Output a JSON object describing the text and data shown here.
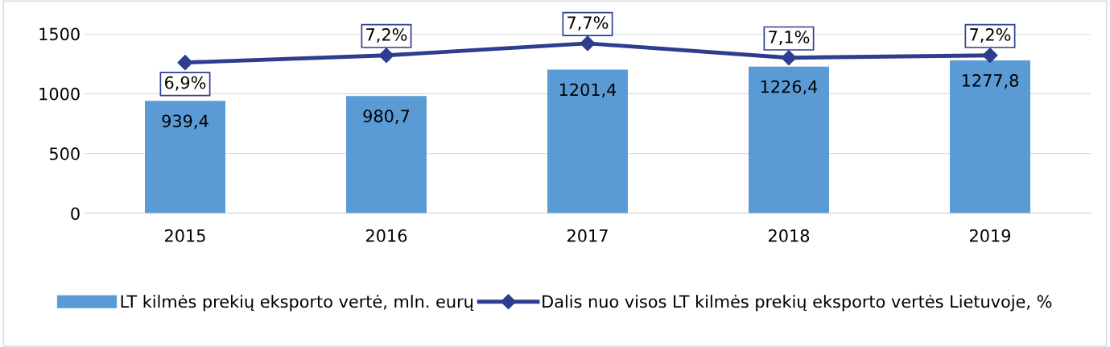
{
  "chart_data": {
    "type": "bar",
    "categories": [
      "2015",
      "2016",
      "2017",
      "2018",
      "2019"
    ],
    "series": [
      {
        "name": "LT kilmės prekių eksporto vertė, mln. eurų",
        "color": "#5b9bd5",
        "values": [
          939.4,
          980.7,
          1201.4,
          1226.4,
          1277.8
        ],
        "value_labels": [
          "939,4",
          "980,7",
          "1201,4",
          "1226,4",
          "1277,8"
        ]
      },
      {
        "name": "Dalis nuo visos LT kilmės prekių eksporto vertės Lietuvoje, %",
        "type": "line",
        "axis": "y2",
        "color": "#2e3d8f",
        "marker": "diamond",
        "values": [
          6.9,
          7.2,
          7.7,
          7.1,
          7.2
        ],
        "value_labels": [
          "6,9%",
          "7,2%",
          "7,7%",
          "7,1%",
          "7,2%"
        ]
      }
    ],
    "ylim": [
      0,
      1500
    ],
    "yticks": [
      0,
      500,
      1000,
      1500
    ],
    "y2lim": [
      0.6,
      8.1
    ],
    "grid": "y",
    "legend": "bottom"
  }
}
